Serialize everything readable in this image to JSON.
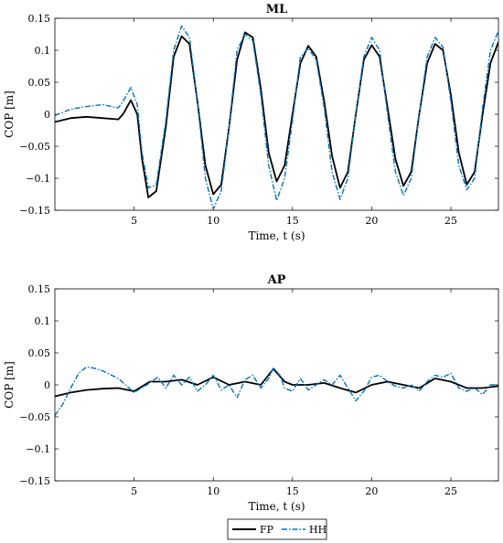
{
  "chart_data": [
    {
      "type": "line",
      "title": "ML",
      "xlabel": "Time, t (s)",
      "ylabel": "COP [m]",
      "xlim": [
        0,
        28
      ],
      "ylim": [
        -0.15,
        0.15
      ],
      "xticks": [
        5,
        10,
        15,
        20,
        25
      ],
      "yticks": [
        -0.15,
        -0.1,
        -0.05,
        0,
        0.05,
        0.1,
        0.15
      ],
      "ytick_labels": [
        "−0.15",
        "−0.1",
        "−0.05",
        "0",
        "0.05",
        "0.1",
        "0.15"
      ],
      "grid": false,
      "series": [
        {
          "name": "FP",
          "color": "#000000",
          "style": "solid",
          "x": [
            0.0,
            1.0,
            2.0,
            3.0,
            4.0,
            4.3,
            4.8,
            5.2,
            5.5,
            5.9,
            6.4,
            7.0,
            7.5,
            8.0,
            8.5,
            9.0,
            9.5,
            10.0,
            10.5,
            11.0,
            11.5,
            12.0,
            12.5,
            13.0,
            13.5,
            14.0,
            14.5,
            15.0,
            15.5,
            16.0,
            16.5,
            17.0,
            17.5,
            18.0,
            18.5,
            19.0,
            19.5,
            20.0,
            20.5,
            21.0,
            21.5,
            22.0,
            22.5,
            23.0,
            23.5,
            24.0,
            24.5,
            25.0,
            25.5,
            26.0,
            26.5,
            27.0,
            27.5,
            28.0
          ],
          "y": [
            -0.012,
            -0.006,
            -0.004,
            -0.006,
            -0.008,
            0.0,
            0.022,
            0.0,
            -0.07,
            -0.13,
            -0.12,
            -0.02,
            0.09,
            0.122,
            0.11,
            0.02,
            -0.08,
            -0.125,
            -0.11,
            -0.02,
            0.085,
            0.128,
            0.12,
            0.04,
            -0.06,
            -0.105,
            -0.08,
            0.0,
            0.08,
            0.107,
            0.09,
            0.02,
            -0.065,
            -0.115,
            -0.09,
            0.0,
            0.085,
            0.108,
            0.09,
            0.01,
            -0.07,
            -0.112,
            -0.09,
            0.0,
            0.08,
            0.11,
            0.1,
            0.03,
            -0.06,
            -0.11,
            -0.09,
            0.0,
            0.08,
            0.113
          ]
        },
        {
          "name": "HH",
          "color": "#0072bd",
          "style": "dashdot",
          "x": [
            0.0,
            1.0,
            2.0,
            3.0,
            4.0,
            4.3,
            4.8,
            5.2,
            5.5,
            5.9,
            6.4,
            7.0,
            7.5,
            8.0,
            8.5,
            9.0,
            9.5,
            10.0,
            10.5,
            11.0,
            11.5,
            12.0,
            12.5,
            13.0,
            13.5,
            14.0,
            14.5,
            15.0,
            15.5,
            16.0,
            16.5,
            17.0,
            17.5,
            18.0,
            18.5,
            19.0,
            19.5,
            20.0,
            20.5,
            21.0,
            21.5,
            22.0,
            22.5,
            23.0,
            23.5,
            24.0,
            24.5,
            25.0,
            25.5,
            26.0,
            26.5,
            27.0,
            27.5,
            28.0
          ],
          "y": [
            -0.002,
            0.008,
            0.012,
            0.015,
            0.01,
            0.02,
            0.042,
            0.015,
            -0.06,
            -0.115,
            -0.11,
            -0.01,
            0.1,
            0.138,
            0.12,
            0.02,
            -0.1,
            -0.148,
            -0.12,
            -0.02,
            0.1,
            0.125,
            0.115,
            0.03,
            -0.08,
            -0.135,
            -0.1,
            -0.01,
            0.09,
            0.103,
            0.085,
            0.01,
            -0.09,
            -0.133,
            -0.1,
            0.0,
            0.09,
            0.12,
            0.1,
            0.0,
            -0.09,
            -0.127,
            -0.1,
            0.0,
            0.09,
            0.12,
            0.105,
            0.02,
            -0.08,
            -0.118,
            -0.1,
            0.01,
            0.1,
            0.13
          ]
        }
      ]
    },
    {
      "type": "line",
      "title": "AP",
      "xlabel": "Time, t (s)",
      "ylabel": "COP [m]",
      "xlim": [
        0,
        28
      ],
      "ylim": [
        -0.15,
        0.15
      ],
      "xticks": [
        5,
        10,
        15,
        20,
        25
      ],
      "yticks": [
        -0.15,
        -0.1,
        -0.05,
        0,
        0.05,
        0.1,
        0.15
      ],
      "ytick_labels": [
        "−0.15",
        "−0.1",
        "−0.05",
        "0",
        "0.05",
        "0.1",
        "0.15"
      ],
      "grid": false,
      "series": [
        {
          "name": "FP",
          "color": "#000000",
          "style": "solid",
          "x": [
            0.0,
            0.5,
            1.0,
            2.0,
            3.0,
            4.0,
            5.0,
            6.0,
            7.0,
            8.0,
            9.0,
            10.0,
            11.0,
            12.0,
            13.0,
            13.8,
            14.5,
            15.0,
            16.0,
            17.0,
            18.0,
            19.0,
            20.0,
            21.0,
            22.0,
            23.0,
            24.0,
            25.0,
            26.0,
            27.0,
            28.0
          ],
          "y": [
            -0.018,
            -0.015,
            -0.012,
            -0.008,
            -0.006,
            -0.005,
            -0.01,
            0.005,
            0.005,
            0.008,
            0.0,
            0.012,
            0.0,
            0.005,
            0.0,
            0.025,
            0.005,
            0.0,
            0.0,
            0.003,
            -0.005,
            -0.012,
            0.0,
            0.005,
            0.0,
            -0.005,
            0.01,
            0.005,
            -0.005,
            -0.005,
            -0.002
          ]
        },
        {
          "name": "HH",
          "color": "#0072bd",
          "style": "dashdot",
          "x": [
            0.0,
            0.5,
            1.0,
            1.5,
            2.0,
            2.5,
            3.0,
            4.0,
            5.0,
            5.8,
            6.5,
            7.0,
            7.5,
            8.0,
            8.5,
            9.0,
            9.5,
            10.0,
            10.5,
            11.0,
            11.5,
            12.0,
            12.5,
            13.0,
            13.5,
            13.8,
            14.2,
            14.5,
            15.0,
            15.5,
            16.0,
            16.5,
            17.0,
            17.5,
            18.0,
            18.5,
            19.0,
            19.5,
            20.0,
            20.5,
            21.0,
            21.5,
            22.0,
            22.5,
            23.0,
            23.5,
            24.0,
            24.5,
            25.0,
            25.5,
            26.0,
            26.5,
            27.0,
            27.5,
            28.0
          ],
          "y": [
            -0.048,
            -0.03,
            -0.005,
            0.018,
            0.028,
            0.026,
            0.022,
            0.01,
            -0.012,
            0.0,
            0.012,
            -0.005,
            0.015,
            0.0,
            0.012,
            -0.01,
            0.0,
            0.015,
            -0.008,
            0.0,
            -0.02,
            0.008,
            0.015,
            -0.005,
            0.01,
            0.027,
            0.015,
            -0.005,
            -0.01,
            0.01,
            -0.008,
            0.0,
            0.008,
            0.0,
            0.015,
            -0.005,
            -0.025,
            -0.01,
            0.012,
            0.015,
            0.005,
            -0.002,
            -0.005,
            0.0,
            -0.01,
            0.005,
            0.015,
            0.012,
            0.018,
            -0.005,
            -0.01,
            -0.005,
            -0.015,
            0.0,
            0.0
          ]
        }
      ]
    }
  ],
  "legend": {
    "placement": "bottom-center",
    "entries": [
      "FP",
      "HH"
    ]
  }
}
